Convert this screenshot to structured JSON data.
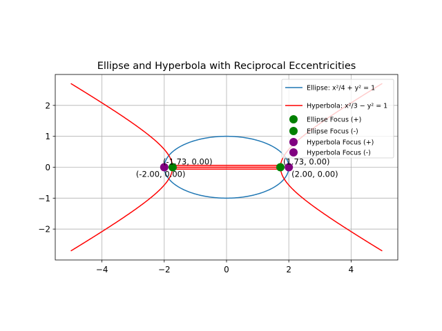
{
  "chart_data": {
    "type": "line",
    "title": "Ellipse and Hyperbola with Reciprocal Eccentricities",
    "xlabel": "",
    "ylabel": "",
    "xlim": [
      -5.5,
      5.5
    ],
    "ylim": [
      -3.0,
      3.0
    ],
    "grid": true,
    "legend_position": "top-right",
    "x_ticks": [
      -4,
      -2,
      0,
      2,
      4
    ],
    "y_ticks": [
      -2,
      -1,
      0,
      1,
      2
    ],
    "x_tick_labels": [
      "−4",
      "−2",
      "0",
      "2",
      "4"
    ],
    "y_tick_labels": [
      "−2",
      "−1",
      "0",
      "1",
      "2"
    ],
    "series": [
      {
        "name": "Ellipse: x²/4 + y² = 1",
        "kind": "ellipse",
        "a": 2,
        "b": 1,
        "color": "#1f77b4"
      },
      {
        "name": "Hyperbola: x²/3 − y² = 1",
        "kind": "hyperbola",
        "a2": 3,
        "b2": 1,
        "x_range": [
          -5,
          5
        ],
        "color": "#ff0000"
      }
    ],
    "points": [
      {
        "name": "Ellipse Focus (+)",
        "x": 1.73,
        "y": 0,
        "color": "#008000"
      },
      {
        "name": "Ellipse Focus (-)",
        "x": -1.73,
        "y": 0,
        "color": "#008000"
      },
      {
        "name": "Hyperbola Focus (+)",
        "x": 2.0,
        "y": 0,
        "color": "#800080"
      },
      {
        "name": "Hyperbola Focus (-)",
        "x": -2.0,
        "y": 0,
        "color": "#800080"
      }
    ],
    "annotations": [
      {
        "text": "(1.73, 0.00)",
        "x": 1.73,
        "y": 0,
        "anchor": "above-right"
      },
      {
        "text": "(-1.73, 0.00)",
        "x": -1.73,
        "y": 0,
        "anchor": "above-left"
      },
      {
        "text": "(2.00, 0.00)",
        "x": 2.0,
        "y": 0,
        "anchor": "below-right"
      },
      {
        "text": "(-2.00, 0.00)",
        "x": -2.0,
        "y": 0,
        "anchor": "below-left"
      }
    ]
  }
}
